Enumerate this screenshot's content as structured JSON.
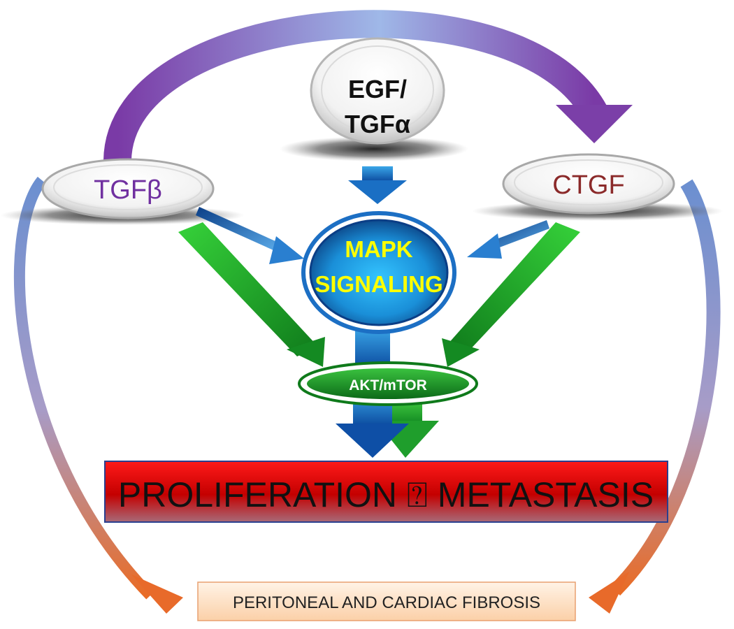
{
  "nodes": {
    "egf_line1": "EGF/",
    "egf_line2": "TGFα",
    "tgfb": "TGFβ",
    "ctgf": "CTGF",
    "mapk_line1": "MAPK",
    "mapk_line2": "SIGNALING",
    "akt": "AKT/mTOR",
    "proliferation": "PROLIFERATION ⍰ METASTASIS",
    "fibrosis": "PERITONEAL AND CARDIAC FIBROSIS"
  },
  "colors": {
    "tgfb_text": "#7030a0",
    "ctgf_text": "#8b2a2a",
    "mapk_text": "#ffff00",
    "arrow_purple": "#7b3fa8",
    "arrow_blue": "#1f5fae",
    "arrow_green": "#2fb52f",
    "arrow_orange": "#e86a2a",
    "proliferation_box": "#c00000",
    "fibrosis_box": "#fde3cc"
  }
}
